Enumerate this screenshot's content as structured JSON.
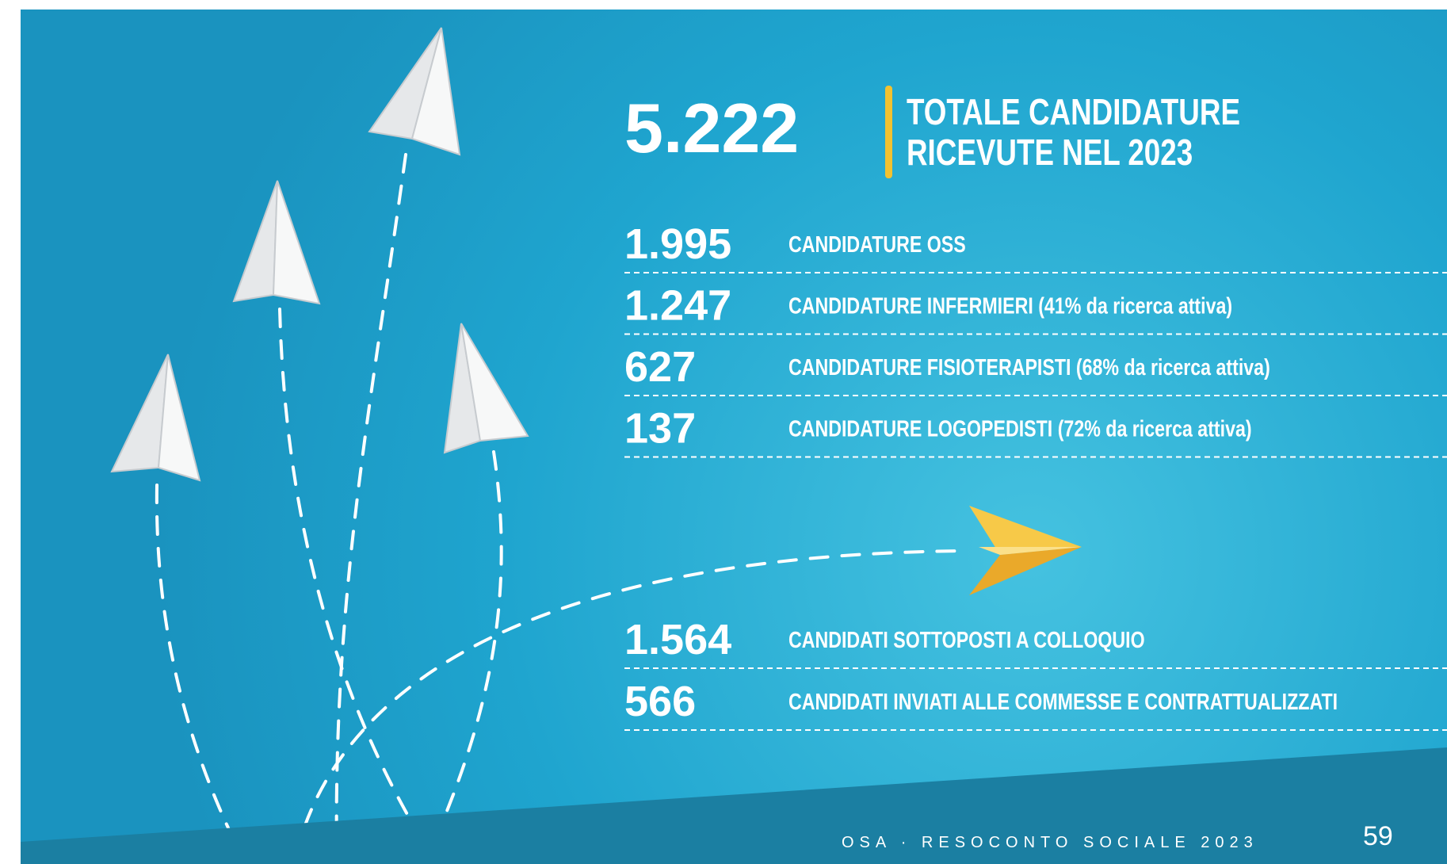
{
  "header": {
    "total": "5.222",
    "title_lines": [
      "TOTALE CANDIDATURE",
      "RICEVUTE NEL 2023"
    ]
  },
  "rows": [
    {
      "number": "1.995",
      "label": "CANDIDATURE OSS"
    },
    {
      "number": "1.247",
      "label": "CANDIDATURE INFERMIERI (41% da ricerca attiva)"
    },
    {
      "number": "627",
      "label": "CANDIDATURE FISIOTERAPISTI (68% da ricerca attiva)"
    },
    {
      "number": "137",
      "label": "CANDIDATURE LOGOPEDISTI (72% da ricerca attiva)"
    }
  ],
  "bottom_rows": [
    {
      "number": "1.564",
      "label": "CANDIDATI SOTTOPOSTI A COLLOQUIO"
    },
    {
      "number": "566",
      "label": "CANDIDATI INVIATI ALLE COMMESSE E CONTRATTUALIZZATI"
    }
  ],
  "footer": {
    "text": "OSA · RESOCONTO SOCIALE 2023",
    "page": "59"
  }
}
